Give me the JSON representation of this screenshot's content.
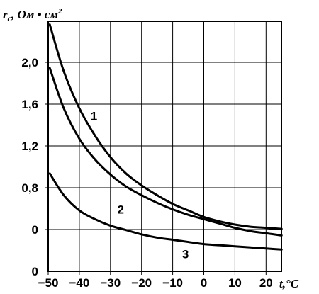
{
  "chart_data": {
    "type": "line",
    "ylabel": "r",
    "ylabel_sub": "c",
    "ylabel_unit": ", Ом • см",
    "ylabel_sup": "2",
    "xlabel": "t",
    "xlabel_unit": ",°C",
    "x_ticks": [
      "−50",
      "−40",
      "−30",
      "−20",
      "−10",
      "0",
      "10",
      "20"
    ],
    "x_tick_values": [
      -50,
      -40,
      -30,
      -20,
      -10,
      0,
      10,
      20
    ],
    "y_ticks": [
      "2,0",
      "1,6",
      "1,2",
      "0,8",
      "0",
      "0"
    ],
    "xlim": [
      -50,
      28
    ],
    "ylim": [
      0,
      2.3
    ],
    "grid": true,
    "series": [
      {
        "name": "1",
        "x": [
          -49.5,
          -45,
          -40,
          -35,
          -30,
          -25,
          -20,
          -15,
          -10,
          -5,
          0,
          5,
          10,
          15,
          20,
          25
        ],
        "y": [
          2.27,
          1.84,
          1.5,
          1.25,
          1.05,
          0.9,
          0.79,
          0.7,
          0.62,
          0.56,
          0.5,
          0.46,
          0.43,
          0.41,
          0.4,
          0.39
        ]
      },
      {
        "name": "2",
        "x": [
          -49.5,
          -45,
          -40,
          -35,
          -30,
          -25,
          -20,
          -15,
          -10,
          -5,
          0,
          5,
          10,
          15,
          20,
          25
        ],
        "y": [
          1.87,
          1.5,
          1.22,
          1.03,
          0.89,
          0.78,
          0.7,
          0.63,
          0.57,
          0.52,
          0.48,
          0.44,
          0.4,
          0.37,
          0.35,
          0.33
        ]
      },
      {
        "name": "3",
        "x": [
          -49.5,
          -45,
          -40,
          -35,
          -30,
          -25,
          -20,
          -15,
          -10,
          -5,
          0,
          5,
          10,
          15,
          20,
          25
        ],
        "y": [
          0.9,
          0.7,
          0.56,
          0.48,
          0.42,
          0.38,
          0.34,
          0.31,
          0.29,
          0.27,
          0.25,
          0.24,
          0.23,
          0.22,
          0.21,
          0.2
        ]
      }
    ],
    "curve_labels": [
      {
        "text": "1",
        "x": -35.3,
        "y": 1.39
      },
      {
        "text": "2",
        "x": -26.7,
        "y": 0.53
      },
      {
        "text": "3",
        "x": -5.9,
        "y": 0.12
      }
    ]
  }
}
